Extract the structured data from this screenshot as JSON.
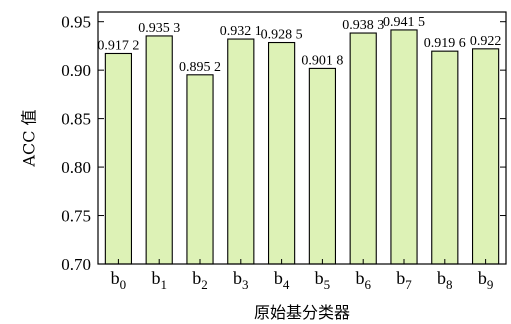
{
  "chart_data": {
    "type": "bar",
    "categories": [
      {
        "base": "b",
        "sub": "0"
      },
      {
        "base": "b",
        "sub": "1"
      },
      {
        "base": "b",
        "sub": "2"
      },
      {
        "base": "b",
        "sub": "3"
      },
      {
        "base": "b",
        "sub": "4"
      },
      {
        "base": "b",
        "sub": "5"
      },
      {
        "base": "b",
        "sub": "6"
      },
      {
        "base": "b",
        "sub": "7"
      },
      {
        "base": "b",
        "sub": "8"
      },
      {
        "base": "b",
        "sub": "9"
      }
    ],
    "values": [
      0.9172,
      0.9353,
      0.8952,
      0.9321,
      0.9285,
      0.9018,
      0.9383,
      0.9415,
      0.9196,
      0.922
    ],
    "data_labels": [
      "0.917 2",
      "0.935 3",
      "0.895 2",
      "0.932 1",
      "0.928 5",
      "0.901 8",
      "0.938 3",
      "0.941 5",
      "0.919 6",
      "0.922"
    ],
    "title": "",
    "xlabel": "原始基分类器",
    "ylabel": "ACC 值",
    "ylim": [
      0.7,
      0.96
    ],
    "yticks": [
      0.7,
      0.75,
      0.8,
      0.85,
      0.9,
      0.95
    ],
    "ytick_labels": [
      "0.70",
      "0.75",
      "0.80",
      "0.85",
      "0.90",
      "0.95"
    ],
    "grid": false,
    "bar_color": "#ddf2b6",
    "bar_edge_color": "#000000"
  }
}
